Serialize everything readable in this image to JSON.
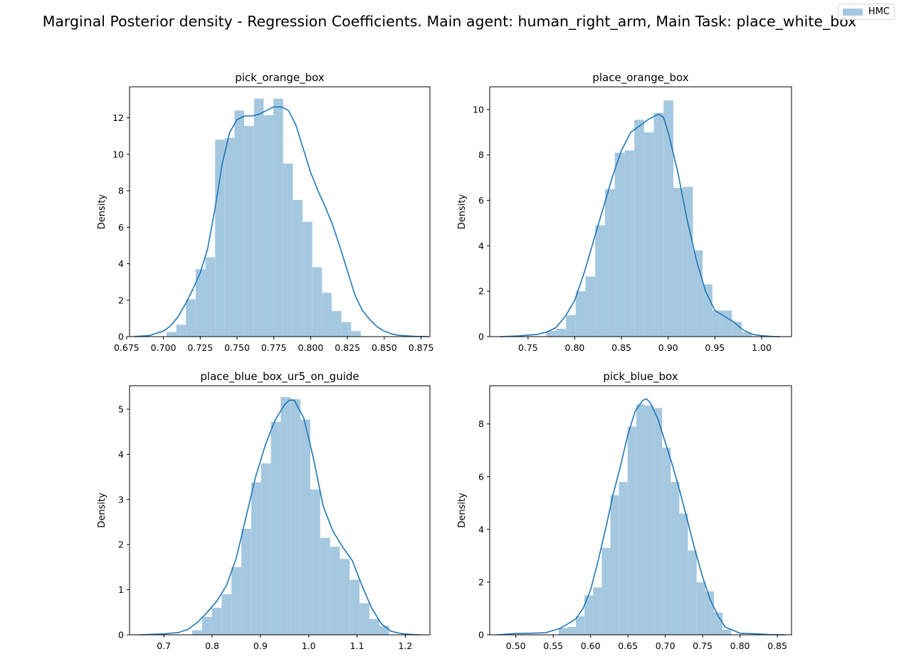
{
  "figure": {
    "suptitle": "Marginal Posterior density - Regression Coefficients. Main agent: human_right_arm, Main Task: place_white_box",
    "legend_label": "HMC",
    "bar_color": "#a5c8e1",
    "kde_color": "#1f77b4"
  },
  "chart_data": [
    {
      "type": "bar",
      "title": "pick_orange_box",
      "xlabel": "",
      "ylabel": "Density",
      "xlim": [
        0.677,
        0.881
      ],
      "ylim": [
        0,
        13.7
      ],
      "xticks": [
        0.675,
        0.7,
        0.725,
        0.75,
        0.775,
        0.8,
        0.825,
        0.85,
        0.875
      ],
      "xtick_labels": [
        "0.675",
        "0.700",
        "0.725",
        "0.750",
        "0.775",
        "0.800",
        "0.825",
        "0.850",
        "0.875"
      ],
      "yticks": [
        0,
        2,
        4,
        6,
        8,
        10,
        12
      ],
      "bin_start": 0.7021,
      "bin_width": 0.0066,
      "values": [
        0.25,
        0.65,
        2.05,
        3.7,
        4.35,
        10.8,
        10.9,
        12.4,
        11.55,
        13.05,
        12.15,
        13.05,
        9.5,
        7.5,
        6.3,
        3.8,
        2.4,
        1.4,
        0.8,
        0.3
      ],
      "kde": {
        "x": [
          0.68,
          0.69,
          0.7,
          0.705,
          0.71,
          0.715,
          0.72,
          0.725,
          0.73,
          0.735,
          0.74,
          0.745,
          0.75,
          0.755,
          0.76,
          0.765,
          0.77,
          0.775,
          0.78,
          0.785,
          0.79,
          0.795,
          0.8,
          0.805,
          0.81,
          0.815,
          0.82,
          0.825,
          0.83,
          0.835,
          0.84,
          0.845,
          0.85,
          0.855,
          0.86,
          0.87,
          0.88
        ],
        "y": [
          0.01,
          0.05,
          0.3,
          0.6,
          1.1,
          1.8,
          2.6,
          3.5,
          4.8,
          7.0,
          9.5,
          11.2,
          11.9,
          12.1,
          12.1,
          12.2,
          12.4,
          12.6,
          12.6,
          12.4,
          11.6,
          10.3,
          9.0,
          8.0,
          7.1,
          6.1,
          4.9,
          3.6,
          2.3,
          1.45,
          0.95,
          0.55,
          0.3,
          0.15,
          0.07,
          0.02,
          0.0
        ]
      }
    },
    {
      "type": "bar",
      "title": "place_orange_box",
      "xlabel": "",
      "ylabel": "Density",
      "xlim": [
        0.709,
        1.032
      ],
      "ylim": [
        0,
        11.0
      ],
      "xticks": [
        0.75,
        0.8,
        0.85,
        0.9,
        0.95,
        1.0
      ],
      "xtick_labels": [
        "0.75",
        "0.80",
        "0.85",
        "0.90",
        "0.95",
        "1.00"
      ],
      "yticks": [
        0,
        2,
        4,
        6,
        8,
        10
      ],
      "bin_start": 0.7697,
      "bin_width": 0.01045,
      "values": [
        0.25,
        0.35,
        0.95,
        2.0,
        2.65,
        4.9,
        6.5,
        8.1,
        8.2,
        9.55,
        9.0,
        9.85,
        10.4,
        6.55,
        6.6,
        3.8,
        2.3,
        1.15,
        1.15,
        0.65,
        0.2
      ],
      "kde": {
        "x": [
          0.72,
          0.74,
          0.76,
          0.77,
          0.78,
          0.79,
          0.8,
          0.81,
          0.82,
          0.83,
          0.84,
          0.85,
          0.86,
          0.87,
          0.88,
          0.89,
          0.895,
          0.9,
          0.91,
          0.92,
          0.93,
          0.94,
          0.95,
          0.96,
          0.97,
          0.98,
          0.99,
          1.0,
          1.01,
          1.02
        ],
        "y": [
          0.0,
          0.03,
          0.1,
          0.2,
          0.4,
          0.9,
          1.6,
          2.8,
          4.2,
          5.6,
          7.0,
          8.2,
          9.0,
          9.3,
          9.6,
          9.8,
          9.65,
          9.0,
          7.3,
          5.2,
          3.4,
          2.0,
          1.15,
          0.9,
          0.65,
          0.3,
          0.1,
          0.04,
          0.01,
          0.0
        ]
      }
    },
    {
      "type": "bar",
      "title": "place_blue_box_ur5_on_guide",
      "xlabel": "",
      "ylabel": "Density",
      "xlim": [
        0.629,
        1.251
      ],
      "ylim": [
        0,
        5.52
      ],
      "xticks": [
        0.7,
        0.8,
        0.9,
        1.0,
        1.1,
        1.2
      ],
      "xtick_labels": [
        "0.7",
        "0.8",
        "0.9",
        "1.0",
        "1.1",
        "1.2"
      ],
      "yticks": [
        0,
        1,
        2,
        3,
        4,
        5
      ],
      "bin_start": 0.7585,
      "bin_width": 0.0204,
      "values": [
        0.1,
        0.4,
        0.6,
        0.9,
        1.5,
        2.35,
        3.38,
        3.8,
        4.72,
        5.27,
        5.22,
        4.77,
        3.22,
        2.15,
        1.95,
        1.68,
        1.22,
        0.7,
        0.35,
        0.2
      ],
      "kde": {
        "x": [
          0.65,
          0.7,
          0.73,
          0.75,
          0.77,
          0.79,
          0.81,
          0.83,
          0.85,
          0.87,
          0.89,
          0.91,
          0.93,
          0.95,
          0.96,
          0.97,
          0.99,
          1.01,
          1.03,
          1.05,
          1.07,
          1.09,
          1.11,
          1.13,
          1.15,
          1.17,
          1.19,
          1.21,
          1.23
        ],
        "y": [
          0.0,
          0.02,
          0.05,
          0.12,
          0.28,
          0.5,
          0.75,
          1.1,
          1.7,
          2.6,
          3.5,
          4.2,
          4.75,
          5.1,
          5.2,
          5.2,
          4.8,
          3.9,
          2.85,
          2.3,
          1.95,
          1.65,
          1.1,
          0.6,
          0.25,
          0.08,
          0.03,
          0.01,
          0.0
        ]
      }
    },
    {
      "type": "bar",
      "title": "pick_blue_box",
      "xlabel": "",
      "ylabel": "Density",
      "xlim": [
        0.465,
        0.869
      ],
      "ylim": [
        0,
        9.45
      ],
      "xticks": [
        0.5,
        0.55,
        0.6,
        0.65,
        0.7,
        0.75,
        0.8,
        0.85
      ],
      "xtick_labels": [
        "0.50",
        "0.55",
        "0.60",
        "0.65",
        "0.70",
        "0.75",
        "0.80",
        "0.85"
      ],
      "yticks": [
        0,
        2,
        4,
        6,
        8
      ],
      "bin_start": 0.5572,
      "bin_width": 0.01155,
      "values": [
        0.25,
        0.3,
        0.7,
        1.5,
        1.8,
        3.3,
        5.3,
        5.8,
        7.9,
        8.75,
        8.7,
        8.6,
        7.1,
        5.8,
        4.6,
        3.2,
        2.0,
        1.65,
        0.85,
        0.2
      ],
      "kde": {
        "x": [
          0.475,
          0.5,
          0.52,
          0.54,
          0.56,
          0.58,
          0.59,
          0.6,
          0.61,
          0.62,
          0.63,
          0.64,
          0.65,
          0.66,
          0.67,
          0.675,
          0.68,
          0.69,
          0.7,
          0.71,
          0.72,
          0.73,
          0.74,
          0.75,
          0.76,
          0.77,
          0.78,
          0.8,
          0.82,
          0.84,
          0.86
        ],
        "y": [
          0.0,
          0.05,
          0.06,
          0.08,
          0.25,
          0.6,
          1.0,
          1.7,
          2.8,
          4.0,
          5.3,
          6.4,
          7.6,
          8.5,
          8.9,
          8.95,
          8.8,
          8.2,
          7.3,
          6.4,
          5.4,
          4.3,
          3.2,
          2.2,
          1.35,
          0.75,
          0.3,
          0.06,
          0.04,
          0.01,
          0.0
        ]
      }
    }
  ]
}
